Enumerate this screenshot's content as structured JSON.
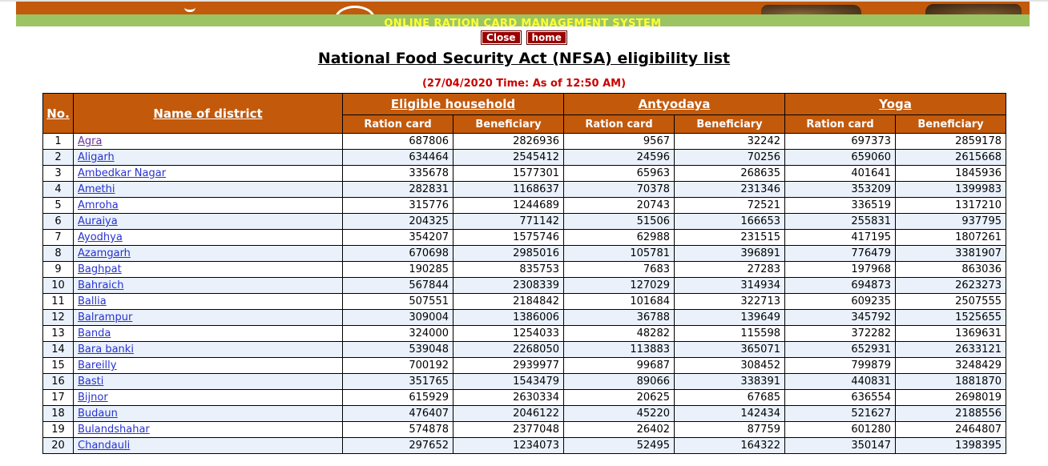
{
  "banner": {
    "system_title": "ONLINE RATION CARD MANAGEMENT SYSTEM"
  },
  "toolbar": {
    "close_label": "Close",
    "home_label": "home"
  },
  "page": {
    "title": "National Food Security Act (NFSA) eligibility list",
    "timestamp": "(27/04/2020 Time: As of 12:50 AM)"
  },
  "colors": {
    "banner_bg": "#C2590B",
    "green_bar_bg": "#9CC463",
    "system_title_text": "#FFFF33",
    "button_bg": "#990000",
    "button_text": "#FFFFFF",
    "timestamp_text": "#CC0000",
    "table_header_bg": "#C2590B",
    "table_header_text": "#FFFFFF",
    "alt_row_bg": "#EAF1FB",
    "link": "#2733CE",
    "visited_link": "#663399"
  },
  "table": {
    "columns": {
      "no": "No.",
      "district": "Name of district",
      "groups": [
        {
          "label": "Eligible household"
        },
        {
          "label": "Antyodaya"
        },
        {
          "label": "Yoga"
        }
      ],
      "subcolumns": [
        "Ration card",
        "Beneficiary"
      ]
    },
    "rows": [
      {
        "no": "1",
        "district": "Agra",
        "visited": true,
        "values": [
          "687806",
          "2826936",
          "9567",
          "32242",
          "697373",
          "2859178"
        ]
      },
      {
        "no": "2",
        "district": "Aligarh",
        "visited": false,
        "values": [
          "634464",
          "2545412",
          "24596",
          "70256",
          "659060",
          "2615668"
        ]
      },
      {
        "no": "3",
        "district": "Ambedkar Nagar",
        "visited": false,
        "values": [
          "335678",
          "1577301",
          "65963",
          "268635",
          "401641",
          "1845936"
        ]
      },
      {
        "no": "4",
        "district": "Amethi",
        "visited": false,
        "values": [
          "282831",
          "1168637",
          "70378",
          "231346",
          "353209",
          "1399983"
        ]
      },
      {
        "no": "5",
        "district": "Amroha",
        "visited": false,
        "values": [
          "315776",
          "1244689",
          "20743",
          "72521",
          "336519",
          "1317210"
        ]
      },
      {
        "no": "6",
        "district": "Auraiya",
        "visited": false,
        "values": [
          "204325",
          "771142",
          "51506",
          "166653",
          "255831",
          "937795"
        ]
      },
      {
        "no": "7",
        "district": "Ayodhya",
        "visited": false,
        "values": [
          "354207",
          "1575746",
          "62988",
          "231515",
          "417195",
          "1807261"
        ]
      },
      {
        "no": "8",
        "district": "Azamgarh",
        "visited": false,
        "values": [
          "670698",
          "2985016",
          "105781",
          "396891",
          "776479",
          "3381907"
        ]
      },
      {
        "no": "9",
        "district": "Baghpat",
        "visited": false,
        "values": [
          "190285",
          "835753",
          "7683",
          "27283",
          "197968",
          "863036"
        ]
      },
      {
        "no": "10",
        "district": "Bahraich",
        "visited": false,
        "values": [
          "567844",
          "2308339",
          "127029",
          "314934",
          "694873",
          "2623273"
        ]
      },
      {
        "no": "11",
        "district": "Ballia",
        "visited": false,
        "values": [
          "507551",
          "2184842",
          "101684",
          "322713",
          "609235",
          "2507555"
        ]
      },
      {
        "no": "12",
        "district": "Balrampur",
        "visited": false,
        "values": [
          "309004",
          "1386006",
          "36788",
          "139649",
          "345792",
          "1525655"
        ]
      },
      {
        "no": "13",
        "district": "Banda",
        "visited": false,
        "values": [
          "324000",
          "1254033",
          "48282",
          "115598",
          "372282",
          "1369631"
        ]
      },
      {
        "no": "14",
        "district": "Bara banki",
        "visited": false,
        "values": [
          "539048",
          "2268050",
          "113883",
          "365071",
          "652931",
          "2633121"
        ]
      },
      {
        "no": "15",
        "district": "Bareilly",
        "visited": false,
        "values": [
          "700192",
          "2939977",
          "99687",
          "308452",
          "799879",
          "3248429"
        ]
      },
      {
        "no": "16",
        "district": "Basti",
        "visited": false,
        "values": [
          "351765",
          "1543479",
          "89066",
          "338391",
          "440831",
          "1881870"
        ]
      },
      {
        "no": "17",
        "district": "Bijnor",
        "visited": false,
        "values": [
          "615929",
          "2630334",
          "20625",
          "67685",
          "636554",
          "2698019"
        ]
      },
      {
        "no": "18",
        "district": "Budaun",
        "visited": false,
        "values": [
          "476407",
          "2046122",
          "45220",
          "142434",
          "521627",
          "2188556"
        ]
      },
      {
        "no": "19",
        "district": "Bulandshahar",
        "visited": false,
        "values": [
          "574878",
          "2377048",
          "26402",
          "87759",
          "601280",
          "2464807"
        ]
      },
      {
        "no": "20",
        "district": "Chandauli",
        "visited": false,
        "values": [
          "297652",
          "1234073",
          "52495",
          "164322",
          "350147",
          "1398395"
        ]
      }
    ]
  }
}
